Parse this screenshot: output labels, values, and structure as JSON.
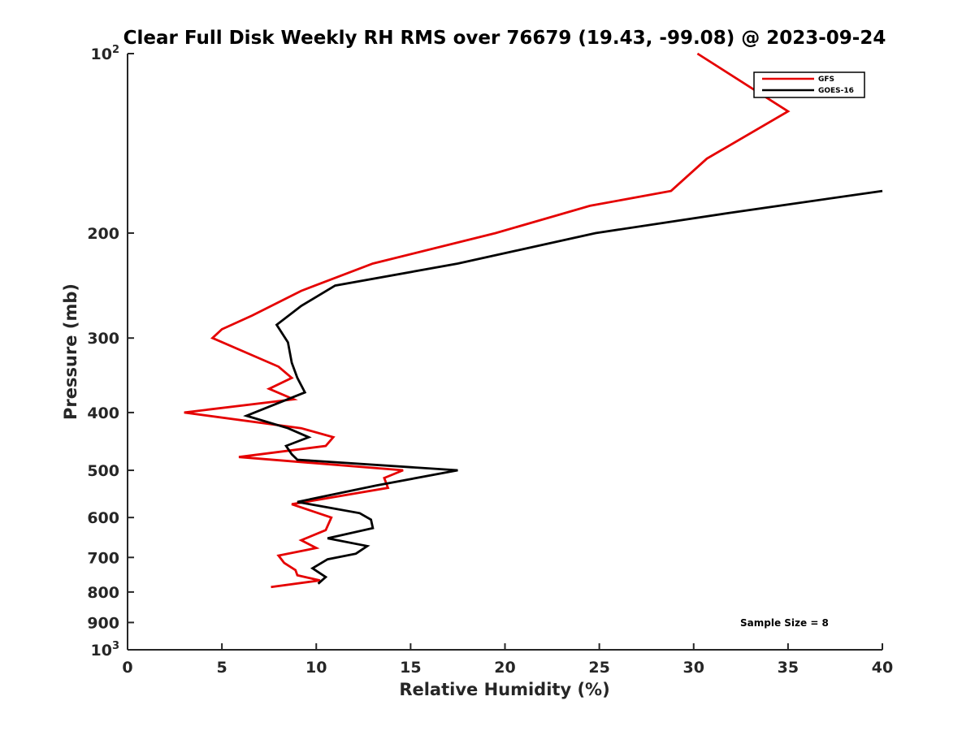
{
  "chart_data": {
    "type": "line",
    "title": "Clear Full Disk Weekly RH RMS over 76679 (19.43, -99.08) @ 2023-09-24",
    "xlabel": "Relative Humidity (%)",
    "ylabel": "Pressure (mb)",
    "xlim": [
      0,
      40
    ],
    "ylim": [
      100,
      1000
    ],
    "y_scale": "log",
    "y_reversed": true,
    "x_ticks": [
      "0",
      "5",
      "10",
      "15",
      "20",
      "25",
      "30",
      "35",
      "40"
    ],
    "y_ticks": [
      {
        "value": 100,
        "base": "10",
        "exp": "2"
      },
      {
        "value": 200,
        "label": "200"
      },
      {
        "value": 300,
        "label": "300"
      },
      {
        "value": 400,
        "label": "400"
      },
      {
        "value": 500,
        "label": "500"
      },
      {
        "value": 600,
        "label": "600"
      },
      {
        "value": 700,
        "label": "700"
      },
      {
        "value": 800,
        "label": "800"
      },
      {
        "value": 900,
        "label": "900"
      },
      {
        "value": 1000,
        "base": "10",
        "exp": "3"
      }
    ],
    "grid": false,
    "legend_position": "top-right",
    "annotation": "Sample Size = 8",
    "series": [
      {
        "name": "GFS",
        "color": "#e50000",
        "points": [
          [
            30.2,
            100
          ],
          [
            35.0,
            125
          ],
          [
            30.7,
            150
          ],
          [
            28.8,
            170
          ],
          [
            24.5,
            180
          ],
          [
            19.5,
            200
          ],
          [
            13.0,
            225
          ],
          [
            9.2,
            250
          ],
          [
            6.6,
            275
          ],
          [
            5.0,
            290
          ],
          [
            4.5,
            300
          ],
          [
            8.0,
            335
          ],
          [
            8.7,
            350
          ],
          [
            7.5,
            365
          ],
          [
            8.8,
            380
          ],
          [
            3.0,
            400
          ],
          [
            9.2,
            425
          ],
          [
            10.9,
            440
          ],
          [
            10.5,
            455
          ],
          [
            5.9,
            475
          ],
          [
            14.6,
            500
          ],
          [
            13.6,
            515
          ],
          [
            13.8,
            535
          ],
          [
            8.7,
            570
          ],
          [
            10.8,
            600
          ],
          [
            10.5,
            630
          ],
          [
            9.2,
            655
          ],
          [
            10.0,
            675
          ],
          [
            8.0,
            695
          ],
          [
            8.3,
            715
          ],
          [
            8.9,
            735
          ],
          [
            9.0,
            750
          ],
          [
            10.2,
            765
          ],
          [
            7.6,
            785
          ]
        ]
      },
      {
        "name": "GOES-16",
        "color": "#000000",
        "points": [
          [
            40.0,
            170
          ],
          [
            31.9,
            185
          ],
          [
            24.8,
            200
          ],
          [
            17.5,
            225
          ],
          [
            11.0,
            245
          ],
          [
            9.2,
            265
          ],
          [
            7.9,
            285
          ],
          [
            8.5,
            305
          ],
          [
            8.7,
            330
          ],
          [
            9.0,
            350
          ],
          [
            9.4,
            370
          ],
          [
            6.3,
            405
          ],
          [
            8.5,
            425
          ],
          [
            9.6,
            440
          ],
          [
            8.4,
            455
          ],
          [
            8.7,
            470
          ],
          [
            9.0,
            480
          ],
          [
            17.5,
            500
          ],
          [
            13.2,
            530
          ],
          [
            9.0,
            565
          ],
          [
            12.3,
            590
          ],
          [
            12.9,
            605
          ],
          [
            13.0,
            625
          ],
          [
            10.6,
            650
          ],
          [
            12.7,
            670
          ],
          [
            12.1,
            690
          ],
          [
            10.6,
            705
          ],
          [
            9.8,
            730
          ],
          [
            10.5,
            755
          ],
          [
            10.1,
            775
          ]
        ]
      }
    ]
  }
}
